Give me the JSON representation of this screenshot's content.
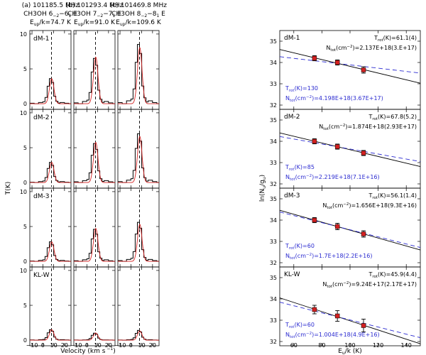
{
  "chart_data": {
    "type": "line",
    "col_headers": [
      {
        "freq": "(a) 101185.5 MHz",
        "trans": "CH3OH 6",
        "trans_sub": "−2",
        "trans_mid": "−6",
        "trans_sub2": "1",
        "trans_end": " E",
        "eup": "74.7 K"
      },
      {
        "freq": "(b) 101293.4 MHz",
        "trans": "CH3OH 7",
        "trans_sub": "−2",
        "trans_mid": "−7",
        "trans_sub2": "1",
        "trans_end": " E",
        "eup": "91.0 K"
      },
      {
        "freq": "(c) 101469.8 MHz",
        "trans": "CH3OH 8",
        "trans_sub": "−2",
        "trans_mid": "−8",
        "trans_sub2": "1",
        "trans_end": " E",
        "eup": "109.6 K"
      }
    ],
    "spectra": {
      "ylabel": "T(K)",
      "xlabel": "Velocity (km s",
      "xlabel_sup": "−1",
      "xlabel_end": ")",
      "xlim": [
        -12,
        26
      ],
      "ylim": [
        -0.8,
        10.5
      ],
      "xticks": [
        -10,
        0,
        10,
        20
      ],
      "yticks": [
        0,
        5,
        10
      ],
      "vline": 8,
      "regions": [
        "dM-1",
        "dM-2",
        "dM-3",
        "KL-W"
      ],
      "peaks": [
        [
          3.6,
          6.5,
          8.5
        ],
        [
          2.9,
          5.6,
          7.0
        ],
        [
          2.8,
          4.6,
          5.6
        ],
        [
          1.5,
          1.0,
          1.4
        ]
      ],
      "fit_ratio": [
        1.0,
        1.03,
        0.95
      ]
    },
    "rotation": {
      "ylabel": "ln(N",
      "ylabel_sub": "u",
      "ylabel_mid": "/g",
      "ylabel_end": ")",
      "xlabel": "E",
      "xlabel_sub": "u",
      "xlabel_end": "/k (K)",
      "xlim": [
        50,
        150
      ],
      "ylim": [
        31.8,
        35.5
      ],
      "xticks": [
        60,
        80,
        100,
        120,
        140
      ],
      "yticks": [
        32,
        33,
        34,
        35
      ],
      "colors": {
        "fit": "#000000",
        "ref": "#2a2ad0",
        "points": "#d42020"
      },
      "panels": [
        {
          "region": "dM-1",
          "trot_fit": "61.1(4)",
          "ntot_fit": "2.137E+18(3.E+17)",
          "trot_ref": "130",
          "ntot_ref": "4.198E+18(3.67E+17)",
          "points": [
            [
              74.7,
              34.2,
              0.12
            ],
            [
              91.0,
              34.0,
              0.12
            ],
            [
              109.6,
              33.65,
              0.15
            ]
          ]
        },
        {
          "region": "dM-2",
          "trot_fit": "67.8(5.2)",
          "ntot_fit": "1.874E+18(2.93E+17)",
          "trot_ref": "85",
          "ntot_ref": "2.219E+18(7.1E+16)",
          "points": [
            [
              74.7,
              34.0,
              0.12
            ],
            [
              91.0,
              33.75,
              0.12
            ],
            [
              109.6,
              33.45,
              0.12
            ]
          ]
        },
        {
          "region": "dM-3",
          "trot_fit": "56.1(1.4)",
          "ntot_fit": "1.656E+18(9.3E+16)",
          "trot_ref": "60",
          "ntot_ref": "1.7E+18(2.2E+16)",
          "points": [
            [
              74.7,
              34.0,
              0.12
            ],
            [
              91.0,
              33.7,
              0.15
            ],
            [
              109.6,
              33.35,
              0.15
            ]
          ]
        },
        {
          "region": "KL-W",
          "trot_fit": "45.9(4.4)",
          "ntot_fit": "9.24E+17(2.17E+17)",
          "trot_ref": "60",
          "ntot_ref": "1.004E+18(4.9E+16)",
          "points": [
            [
              74.7,
              33.5,
              0.2
            ],
            [
              91.0,
              33.2,
              0.25
            ],
            [
              109.6,
              32.75,
              0.3
            ]
          ]
        }
      ]
    }
  }
}
